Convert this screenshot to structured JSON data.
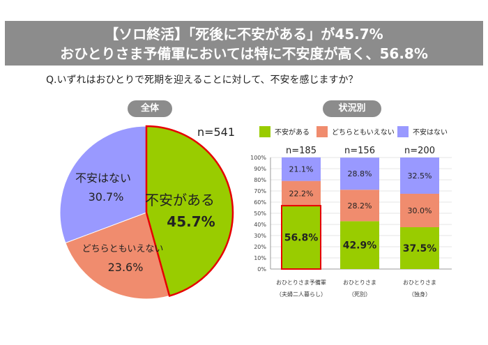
{
  "header": {
    "title_line1": "【ソロ終活】「死後に不安がある」が45.7%",
    "title_line2": "おひとりさま予備軍においては特に不安度が高く、56.8%"
  },
  "question": "Q.いずれはおひとりで死期を迎えることに対して、不安を感じますか？",
  "chart_data": [
    {
      "type": "pie",
      "title": "全体",
      "n_label": "n=541",
      "slices": [
        {
          "label": "不安がある",
          "value": 45.7,
          "value_label": "45.7%",
          "color": "#99cc00"
        },
        {
          "label": "どちらともいえない",
          "value": 23.6,
          "value_label": "23.6%",
          "color": "#f08c6e"
        },
        {
          "label": "不安はない",
          "value": 30.7,
          "value_label": "30.7%",
          "color": "#9999ff"
        }
      ]
    },
    {
      "type": "bar",
      "stacked": true,
      "title": "状況別",
      "ylim": [
        0,
        100
      ],
      "yticks": [
        "0%",
        "10%",
        "20%",
        "30%",
        "40%",
        "50%",
        "60%",
        "70%",
        "80%",
        "90%",
        "100%"
      ],
      "categories": [
        {
          "line1": "おひとりさま予備軍",
          "line2": "（夫婦二人暮らし）",
          "n": "n=185"
        },
        {
          "line1": "おひとりさま",
          "line2": "（死別）",
          "n": "n=156"
        },
        {
          "line1": "おひとりさま",
          "line2": "（独身）",
          "n": "n=200"
        }
      ],
      "series": [
        {
          "name": "不安がある",
          "color": "#99cc00",
          "values": [
            56.8,
            42.9,
            37.5
          ],
          "labels": [
            "56.8%",
            "42.9%",
            "37.5%"
          ]
        },
        {
          "name": "どちらともいえない",
          "color": "#f08c6e",
          "values": [
            22.2,
            28.2,
            30.0
          ],
          "labels": [
            "22.2%",
            "28.2%",
            "30.0%"
          ]
        },
        {
          "name": "不安はない",
          "color": "#9999ff",
          "values": [
            21.1,
            28.8,
            32.5
          ],
          "labels": [
            "21.1%",
            "28.8%",
            "32.5%"
          ]
        }
      ],
      "highlight_color": "#e60000"
    }
  ]
}
